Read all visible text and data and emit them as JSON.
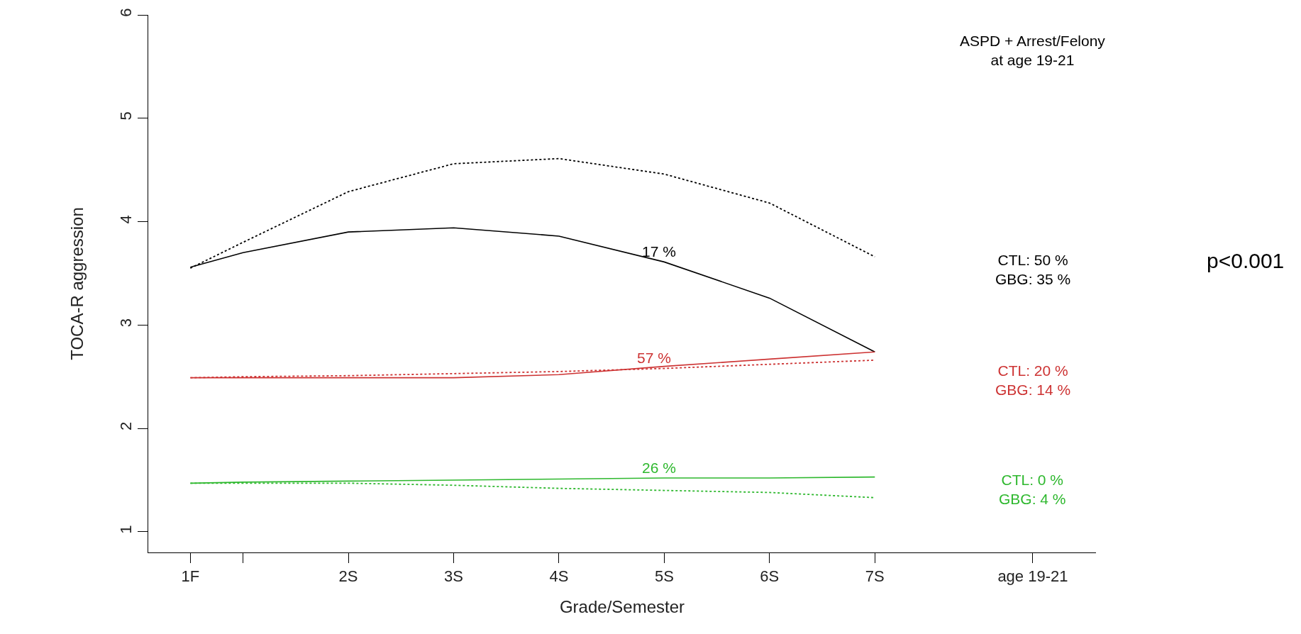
{
  "chart_data": {
    "type": "line",
    "xlabel": "Grade/Semester",
    "ylabel": "TOCA-R aggression",
    "x": [
      1,
      1.5,
      2.5,
      3.5,
      4.5,
      5.5,
      6.5,
      7.5
    ],
    "series": [
      {
        "color": "#000000",
        "line_style": "solid",
        "values": [
          3.56,
          3.7,
          3.9,
          3.94,
          3.86,
          3.61,
          3.26,
          2.74
        ]
      },
      {
        "color": "#000000",
        "line_style": "dotted",
        "values": [
          3.55,
          3.8,
          4.29,
          4.56,
          4.61,
          4.46,
          4.18,
          3.66
        ]
      },
      {
        "color": "#cd3333",
        "line_style": "solid",
        "values": [
          2.49,
          2.49,
          2.49,
          2.49,
          2.52,
          2.6,
          2.67,
          2.74
        ]
      },
      {
        "color": "#cd3333",
        "line_style": "dotted",
        "values": [
          2.49,
          2.5,
          2.51,
          2.53,
          2.55,
          2.58,
          2.62,
          2.66
        ]
      },
      {
        "color": "#2eb82e",
        "line_style": "solid",
        "values": [
          1.47,
          1.48,
          1.49,
          1.5,
          1.51,
          1.52,
          1.52,
          1.53
        ]
      },
      {
        "color": "#2eb82e",
        "line_style": "dotted",
        "values": [
          1.47,
          1.47,
          1.47,
          1.45,
          1.42,
          1.4,
          1.38,
          1.33
        ]
      }
    ],
    "xlim": [
      0.6,
      9.6
    ],
    "ylim": [
      0.8,
      6.0
    ],
    "xticks": [
      {
        "value": 1,
        "label": "1F"
      },
      {
        "value": 1.5,
        "label": null
      },
      {
        "value": 2.5,
        "label": "2S"
      },
      {
        "value": 3.5,
        "label": "3S"
      },
      {
        "value": 4.5,
        "label": "4S"
      },
      {
        "value": 5.5,
        "label": "5S"
      },
      {
        "value": 6.5,
        "label": "6S"
      },
      {
        "value": 7.5,
        "label": "7S"
      },
      {
        "value": 9,
        "label": "age 19-21"
      }
    ],
    "yticks": [
      1,
      2,
      3,
      4,
      5,
      6
    ],
    "marker": "none",
    "annotations": [
      "ASPD + Arrest/Felony\nat age 19-21",
      "p<0.001",
      "17 %",
      "57 %",
      "26 %",
      "CTL: 50 %\nGBG: 35 %",
      "CTL: 20 %\nGBG: 14 %",
      "CTL: 0 %\nGBG: 4 %"
    ]
  }
}
